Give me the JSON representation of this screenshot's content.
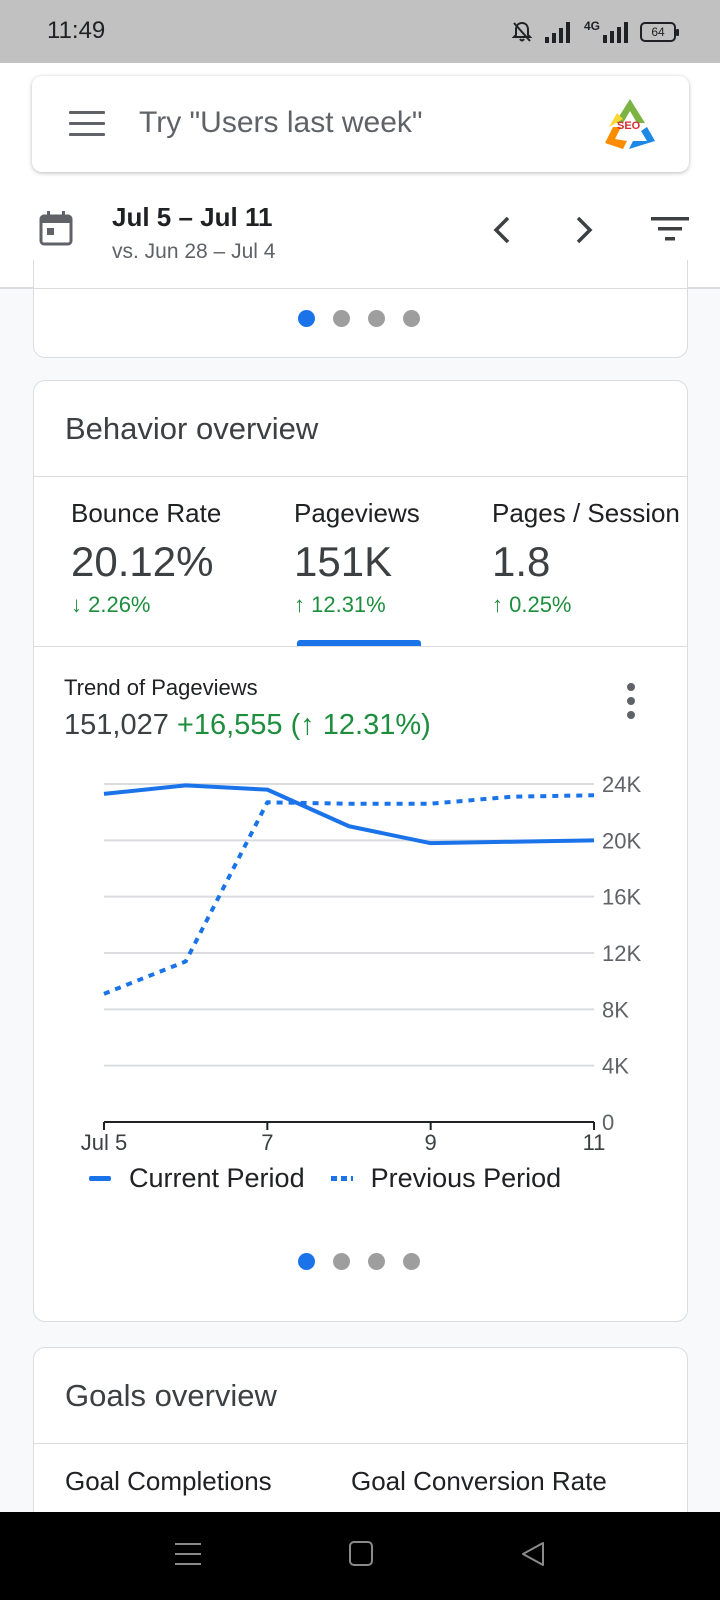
{
  "status_bar": {
    "time": "11:49",
    "battery": "64",
    "network": "4G"
  },
  "search": {
    "placeholder": "Try \"Users last week\"",
    "avatar_icon": "seo-logo-icon"
  },
  "date_range": {
    "current": "Jul 5 – Jul 11",
    "comparison": "vs. Jun 28 – Jul 4"
  },
  "behavior": {
    "title": "Behavior overview",
    "metrics": [
      {
        "label": "Bounce Rate",
        "value": "20.12%",
        "change": "↓ 2.26%"
      },
      {
        "label": "Pageviews",
        "value": "151K",
        "change": "↑ 12.31%"
      },
      {
        "label": "Pages / Session",
        "value": "1.8",
        "change": "↑ 0.25%"
      }
    ],
    "active_metric": 1,
    "trend_label": "Trend of Pageviews",
    "trend_total": "151,027",
    "trend_delta": "+16,555 (↑ 12.31%)"
  },
  "chart_data": {
    "type": "line",
    "x": [
      "Jul 5",
      "Jul 6",
      "Jul 7",
      "Jul 8",
      "Jul 9",
      "Jul 10",
      "Jul 11"
    ],
    "x_tick_labels": [
      "Jul 5",
      "7",
      "9",
      "11"
    ],
    "y_tick_labels": [
      "0",
      "4K",
      "8K",
      "12K",
      "16K",
      "20K",
      "24K"
    ],
    "ylim": [
      0,
      24000
    ],
    "grid": true,
    "legend_position": "bottom",
    "series": [
      {
        "name": "Current Period",
        "style": "solid",
        "values": [
          23300,
          23900,
          23600,
          21000,
          19800,
          19900,
          20000
        ]
      },
      {
        "name": "Previous Period",
        "style": "dotted",
        "values": [
          9100,
          11400,
          22700,
          22600,
          22600,
          23100,
          23200
        ]
      }
    ],
    "color": "#1a73e8"
  },
  "goals": {
    "title": "Goals overview",
    "metrics": [
      "Goal Completions",
      "Goal Conversion Rate"
    ]
  },
  "carousel": {
    "count": 4,
    "active": 0
  },
  "colors": {
    "accent": "#1a73e8",
    "positive": "#1e8e3e"
  }
}
